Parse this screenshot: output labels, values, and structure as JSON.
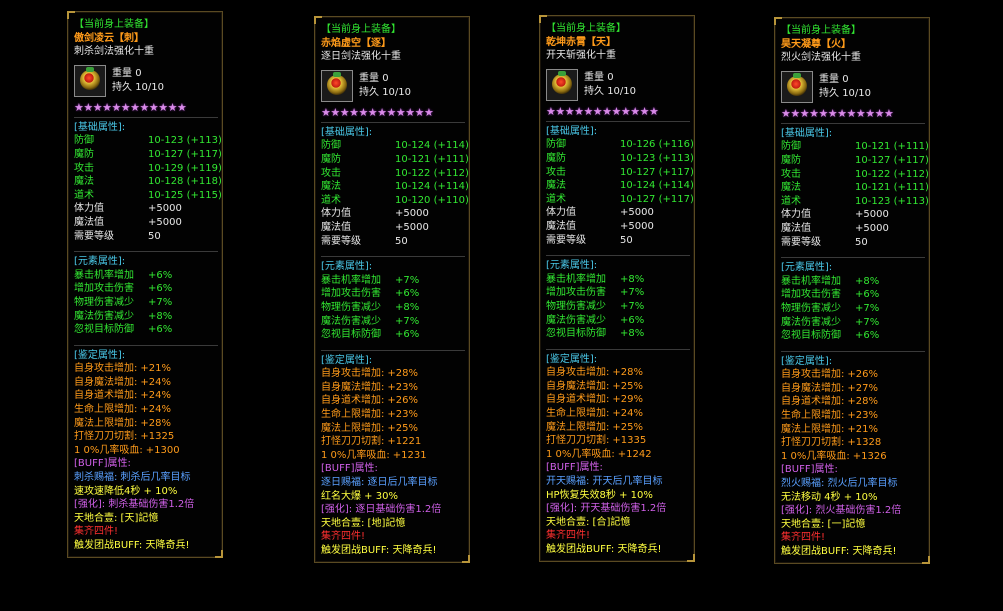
{
  "panels": [
    {
      "header": "【当前身上装备】",
      "name": "傲剑凌云【刺】",
      "subtitle": "刺杀剑法强化十重",
      "weight_label": "重量",
      "weight": "0",
      "durability_label": "持久",
      "durability": "10/10",
      "stars": "★★★★★★★★★★★★",
      "base_title": "[基础属性]:",
      "base": [
        {
          "k": "防御",
          "v": "10-123 (+113)"
        },
        {
          "k": "魔防",
          "v": "10-127 (+117)"
        },
        {
          "k": "攻击",
          "v": "10-129 (+119)"
        },
        {
          "k": "魔法",
          "v": "10-128 (+118)"
        },
        {
          "k": "道术",
          "v": "10-125 (+115)"
        }
      ],
      "extra": [
        {
          "k": "体力值",
          "v": "+5000"
        },
        {
          "k": "魔法值",
          "v": "+5000"
        },
        {
          "k": "需要等级",
          "v": "50"
        }
      ],
      "elem_title": "[元素属性]:",
      "elem": [
        {
          "k": "暴击机率增加",
          "v": "+6%"
        },
        {
          "k": "增加攻击伤害",
          "v": "+6%"
        },
        {
          "k": "物理伤害减少",
          "v": "+7%"
        },
        {
          "k": "魔法伤害减少",
          "v": "+8%"
        },
        {
          "k": "忽视目标防御",
          "v": "+6%"
        }
      ],
      "ident_title": "[鉴定属性]:",
      "ident": [
        {
          "k": "自身攻击增加:",
          "v": "+21%"
        },
        {
          "k": "自身魔法增加:",
          "v": "+24%"
        },
        {
          "k": "自身道术增加:",
          "v": "+24%"
        },
        {
          "k": "生命上限增加:",
          "v": "+24%"
        },
        {
          "k": "魔法上限增加:",
          "v": "+28%"
        },
        {
          "k": "打怪刀刀切割:",
          "v": "+1325"
        },
        {
          "k": "1 0%几率吸血:",
          "v": "+1300"
        }
      ],
      "buff_title": "[BUFF]属性:",
      "buff_line1": "刺杀赐福: 刺杀后几率目标",
      "buff_line2": "速攻速降低4秒 + 10%",
      "strength": "[强化]: 刺杀基础伤害1.2倍",
      "heaven": "天地合壹: [天]記憶",
      "set": "集齐四件!",
      "trigger": "触发团战BUFF: 天降奇兵!"
    },
    {
      "header": "【当前身上装备】",
      "name": "赤焰虚空【逐】",
      "subtitle": "逐日剑法强化十重",
      "weight_label": "重量",
      "weight": "0",
      "durability_label": "持久",
      "durability": "10/10",
      "stars": "★★★★★★★★★★★★",
      "base_title": "[基础属性]:",
      "base": [
        {
          "k": "防御",
          "v": "10-124 (+114)"
        },
        {
          "k": "魔防",
          "v": "10-121 (+111)"
        },
        {
          "k": "攻击",
          "v": "10-122 (+112)"
        },
        {
          "k": "魔法",
          "v": "10-124 (+114)"
        },
        {
          "k": "道术",
          "v": "10-120 (+110)"
        }
      ],
      "extra": [
        {
          "k": "体力值",
          "v": "+5000"
        },
        {
          "k": "魔法值",
          "v": "+5000"
        },
        {
          "k": "需要等级",
          "v": "50"
        }
      ],
      "elem_title": "[元素属性]:",
      "elem": [
        {
          "k": "暴击机率增加",
          "v": "+7%"
        },
        {
          "k": "增加攻击伤害",
          "v": "+6%"
        },
        {
          "k": "物理伤害减少",
          "v": "+8%"
        },
        {
          "k": "魔法伤害减少",
          "v": "+7%"
        },
        {
          "k": "忽视目标防御",
          "v": "+6%"
        }
      ],
      "ident_title": "[鉴定属性]:",
      "ident": [
        {
          "k": "自身攻击增加:",
          "v": "+28%"
        },
        {
          "k": "自身魔法增加:",
          "v": "+23%"
        },
        {
          "k": "自身道术增加:",
          "v": "+26%"
        },
        {
          "k": "生命上限增加:",
          "v": "+23%"
        },
        {
          "k": "魔法上限增加:",
          "v": "+25%"
        },
        {
          "k": "打怪刀刀切割:",
          "v": "+1221"
        },
        {
          "k": "1 0%几率吸血:",
          "v": "+1231"
        }
      ],
      "buff_title": "[BUFF]属性:",
      "buff_line1": "逐日赐福: 逐日后几率目标",
      "buff_line2": "红名大爆 + 30%",
      "strength": "[强化]: 逐日基础伤害1.2倍",
      "heaven": "天地合壹: [地]記憶",
      "set": "集齐四件!",
      "trigger": "触发团战BUFF: 天降奇兵!"
    },
    {
      "header": "【当前身上装备】",
      "name": "乾坤赤霄【天】",
      "subtitle": "开天斩强化十重",
      "weight_label": "重量",
      "weight": "0",
      "durability_label": "持久",
      "durability": "10/10",
      "stars": "★★★★★★★★★★★★",
      "base_title": "[基础属性]:",
      "base": [
        {
          "k": "防御",
          "v": "10-126 (+116)"
        },
        {
          "k": "魔防",
          "v": "10-123 (+113)"
        },
        {
          "k": "攻击",
          "v": "10-127 (+117)"
        },
        {
          "k": "魔法",
          "v": "10-124 (+114)"
        },
        {
          "k": "道术",
          "v": "10-127 (+117)"
        }
      ],
      "extra": [
        {
          "k": "体力值",
          "v": "+5000"
        },
        {
          "k": "魔法值",
          "v": "+5000"
        },
        {
          "k": "需要等级",
          "v": "50"
        }
      ],
      "elem_title": "[元素属性]:",
      "elem": [
        {
          "k": "暴击机率增加",
          "v": "+8%"
        },
        {
          "k": "增加攻击伤害",
          "v": "+7%"
        },
        {
          "k": "物理伤害减少",
          "v": "+7%"
        },
        {
          "k": "魔法伤害减少",
          "v": "+6%"
        },
        {
          "k": "忽视目标防御",
          "v": "+8%"
        }
      ],
      "ident_title": "[鉴定属性]:",
      "ident": [
        {
          "k": "自身攻击增加:",
          "v": "+28%"
        },
        {
          "k": "自身魔法增加:",
          "v": "+25%"
        },
        {
          "k": "自身道术增加:",
          "v": "+29%"
        },
        {
          "k": "生命上限增加:",
          "v": "+24%"
        },
        {
          "k": "魔法上限增加:",
          "v": "+25%"
        },
        {
          "k": "打怪刀刀切割:",
          "v": "+1335"
        },
        {
          "k": "1 0%几率吸血:",
          "v": "+1242"
        }
      ],
      "buff_title": "[BUFF]属性:",
      "buff_line1": "开天赐福: 开天后几率目标",
      "buff_line2": "HP恢复失效8秒 + 10%",
      "strength": "[强化]: 开天基础伤害1.2倍",
      "heaven": "天地合壹: [合]記憶",
      "set": "集齐四件!",
      "trigger": "触发团战BUFF: 天降奇兵!"
    },
    {
      "header": "【当前身上装备】",
      "name": "昊天凝尊【火】",
      "subtitle": "烈火剑法强化十重",
      "weight_label": "重量",
      "weight": "0",
      "durability_label": "持久",
      "durability": "10/10",
      "stars": "★★★★★★★★★★★★",
      "base_title": "[基础属性]:",
      "base": [
        {
          "k": "防御",
          "v": "10-121 (+111)"
        },
        {
          "k": "魔防",
          "v": "10-127 (+117)"
        },
        {
          "k": "攻击",
          "v": "10-122 (+112)"
        },
        {
          "k": "魔法",
          "v": "10-121 (+111)"
        },
        {
          "k": "道术",
          "v": "10-123 (+113)"
        }
      ],
      "extra": [
        {
          "k": "体力值",
          "v": "+5000"
        },
        {
          "k": "魔法值",
          "v": "+5000"
        },
        {
          "k": "需要等级",
          "v": "50"
        }
      ],
      "elem_title": "[元素属性]:",
      "elem": [
        {
          "k": "暴击机率增加",
          "v": "+8%"
        },
        {
          "k": "增加攻击伤害",
          "v": "+6%"
        },
        {
          "k": "物理伤害减少",
          "v": "+7%"
        },
        {
          "k": "魔法伤害减少",
          "v": "+7%"
        },
        {
          "k": "忽视目标防御",
          "v": "+6%"
        }
      ],
      "ident_title": "[鉴定属性]:",
      "ident": [
        {
          "k": "自身攻击增加:",
          "v": "+26%"
        },
        {
          "k": "自身魔法增加:",
          "v": "+27%"
        },
        {
          "k": "自身道术增加:",
          "v": "+28%"
        },
        {
          "k": "生命上限增加:",
          "v": "+23%"
        },
        {
          "k": "魔法上限增加:",
          "v": "+21%"
        },
        {
          "k": "打怪刀刀切割:",
          "v": "+1328"
        },
        {
          "k": "1 0%几率吸血:",
          "v": "+1326"
        }
      ],
      "buff_title": "[BUFF]属性:",
      "buff_line1": "烈火赐福: 烈火后几率目标",
      "buff_line2": "无法移动 4秒 + 10%",
      "strength": "[强化]: 烈火基础伤害1.2倍",
      "heaven": "天地合壹: [一]記憶",
      "set": "集齐四件!",
      "trigger": "触发团战BUFF: 天降奇兵!"
    }
  ]
}
